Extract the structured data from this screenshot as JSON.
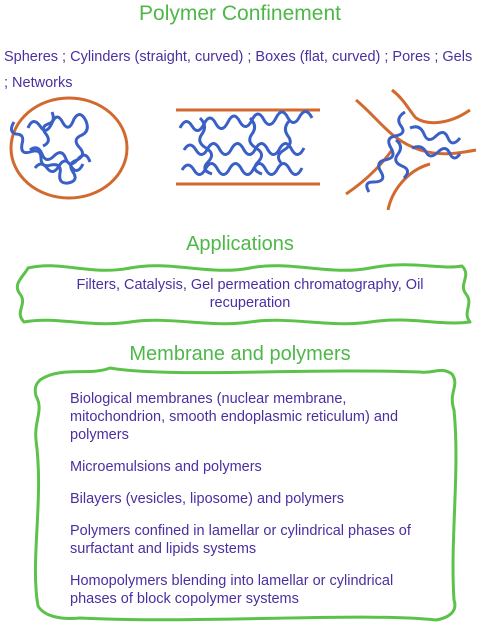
{
  "title": "Polymer Confinement",
  "shapes_text": "Spheres ; Cylinders (straight, curved) ; Boxes (flat, curved) ; Pores ; Gels ; Networks",
  "applications": {
    "heading": "Applications",
    "text": "Filters,  Catalysis,  Gel permeation chromatography, Oil recuperation"
  },
  "membrane": {
    "heading": "Membrane and polymers",
    "items": [
      "Biological membranes (nuclear membrane, mitochondrion, smooth endoplasmic reticulum) and polymers",
      "Microemulsions and polymers",
      "Bilayers (vesicles, liposome) and polymers",
      "Polymers confined in lamellar or cylindrical phases of surfactant and lipids systems",
      "Homopolymers blending into lamellar or cylindrical phases of block copolymer systems"
    ]
  },
  "colors": {
    "title_green": "#4db848",
    "text_purple": "#4b2fa0",
    "wall_orange": "#d2692e",
    "polymer_blue": "#3a5fc7",
    "frame_green": "#5cc249"
  },
  "illustrations": [
    "sphere-confinement",
    "cylinder-confinement",
    "pore-confinement"
  ]
}
